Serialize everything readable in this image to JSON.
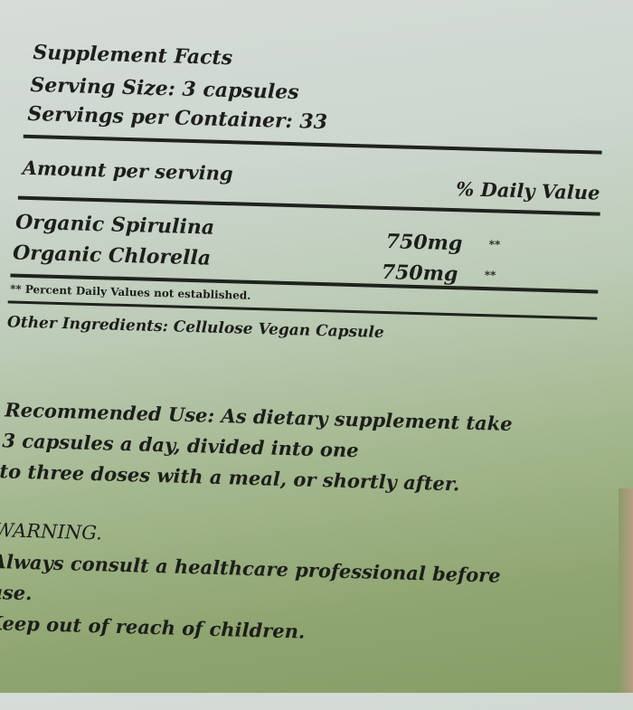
{
  "facts": {
    "title": "Supplement Facts",
    "serving_size": "Serving Size: 3 capsules",
    "servings_per_container": "Servings per Container: 33",
    "amount_header": "Amount per serving",
    "dv_header": "% Daily Value",
    "ingredients": [
      {
        "name": "Organic Spirulina",
        "amount": "750mg",
        "dv": "**"
      },
      {
        "name": "Organic Chlorella",
        "amount": "750mg",
        "dv": "**"
      }
    ],
    "footnote": "** Percent Daily Values not established.",
    "other_ingredients": "Other Ingredients:  Cellulose Vegan Capsule"
  },
  "recommended_use": [
    "Recommended Use: As dietary supplement take",
    "3 capsules a day, divided into one",
    "to three doses with a meal, or shortly after."
  ],
  "warning": {
    "title": "WARNING.",
    "lines": [
      "Always consult a healthcare professional before",
      "use.",
      "Keep out of reach of children."
    ]
  }
}
